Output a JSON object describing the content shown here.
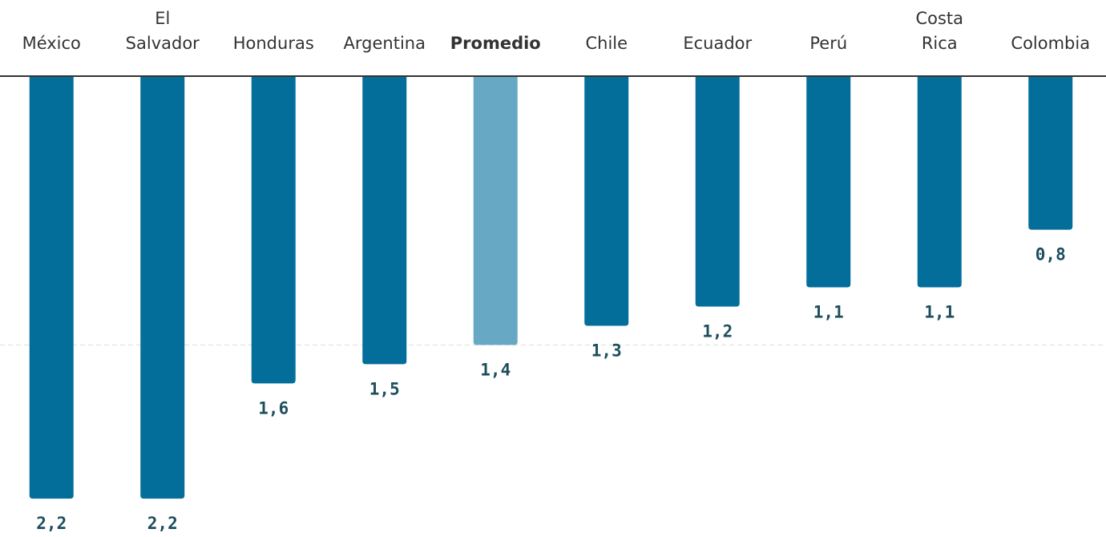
{
  "chart_data": {
    "type": "bar",
    "categories": [
      "México",
      "El Salvador",
      "Honduras",
      "Argentina",
      "Promedio",
      "Chile",
      "Ecuador",
      "Perú",
      "Costa Rica",
      "Colombia"
    ],
    "values": [
      2.2,
      2.2,
      1.6,
      1.5,
      1.4,
      1.3,
      1.2,
      1.1,
      1.1,
      0.8
    ],
    "value_labels": [
      "2,2",
      "2,2",
      "1,6",
      "1,5",
      "1,4",
      "1,3",
      "1,2",
      "1,1",
      "1,1",
      "0,8"
    ],
    "colors": [
      "#046e9b",
      "#046e9b",
      "#046e9b",
      "#046e9b",
      "#67a9c4",
      "#046e9b",
      "#046e9b",
      "#046e9b",
      "#046e9b",
      "#046e9b"
    ],
    "bold_categories": [
      "Promedio"
    ],
    "ylim": [
      0,
      2.4
    ],
    "yticks": [
      0,
      1.4
    ],
    "inverted": true,
    "grid": true
  }
}
